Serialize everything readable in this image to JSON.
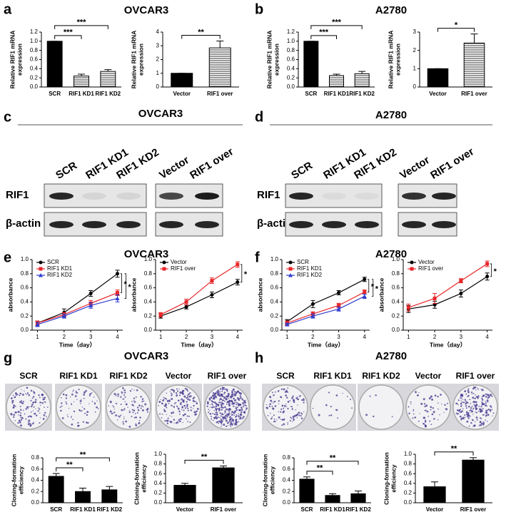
{
  "figure": {
    "panels": [
      {
        "letter": "a",
        "title": "OVCAR3"
      },
      {
        "letter": "b",
        "title": "A2780"
      },
      {
        "letter": "c",
        "title": "OVCAR3"
      },
      {
        "letter": "d",
        "title": "A2780"
      },
      {
        "letter": "e",
        "title": "OVCAR3"
      },
      {
        "letter": "f",
        "title": "A2780"
      },
      {
        "letter": "g",
        "title": "OVCAR3"
      },
      {
        "letter": "h",
        "title": "A2780"
      }
    ],
    "blots": [
      {
        "lanes": [
          "SCR",
          "RIF1 KD1",
          "RIF1 KD2",
          "Vector",
          "RIF1 over"
        ],
        "rows": [
          "RIF1",
          "β-actin"
        ]
      },
      {
        "lanes": [
          "SCR",
          "RIF1 KD1",
          "RIF1 KD2",
          "Vector",
          "RIF1 over"
        ],
        "rows": [
          "RIF1",
          "β-actin"
        ]
      }
    ],
    "dishes": [
      {
        "lanes": [
          "SCR",
          "RIF1 KD1",
          "RIF1 KD2",
          "Vector",
          "RIF1 over"
        ]
      },
      {
        "lanes": [
          "SCR",
          "RIF1 KD1",
          "RIF1 KD2",
          "Vector",
          "RIF1 over"
        ]
      }
    ]
  },
  "chart_data": [
    {
      "type": "bar",
      "ylabel": [
        "Relative RIF1 mRNA",
        "expression"
      ],
      "categories": [
        "SCR",
        "RIF1 KD1",
        "RIF1 KD2"
      ],
      "values": [
        1.0,
        0.24,
        0.34
      ],
      "errors": [
        0,
        0.04,
        0.04
      ],
      "colors": [
        "#000000",
        "hatch",
        "hatch"
      ],
      "ylim": [
        0,
        1.2
      ],
      "yticks": [
        {
          "value": 0,
          "label": "0.0"
        },
        0.2,
        0.4,
        0.6,
        0.8,
        {
          "value": 1,
          "label": "1.0"
        },
        1.2
      ],
      "annotations": [
        {
          "text": "***",
          "between": [
            "SCR",
            "RIF1 KD1"
          ]
        },
        {
          "text": "***",
          "between": [
            "SCR",
            "RIF1 KD2"
          ]
        }
      ]
    },
    {
      "type": "bar",
      "ylabel": [
        "Relative RIF1 mRNA",
        "expression"
      ],
      "categories": [
        "Vector",
        "RIF1 over"
      ],
      "values": [
        1.0,
        2.85
      ],
      "errors": [
        0,
        0.5
      ],
      "colors": [
        "#000000",
        "hatch"
      ],
      "ylim": [
        0,
        4
      ],
      "yticks": [
        0,
        1,
        2,
        3,
        4
      ],
      "annotations": [
        {
          "text": "**",
          "between": [
            "Vector",
            "RIF1 over"
          ]
        }
      ]
    },
    {
      "type": "bar",
      "ylabel": [
        "Relative RIF1 mRNA",
        "expression"
      ],
      "categories": [
        "SCR",
        "RIF1 KD1",
        "RIF1 KD2"
      ],
      "values": [
        1.0,
        0.25,
        0.29
      ],
      "errors": [
        0,
        0.03,
        0.05
      ],
      "colors": [
        "#000000",
        "hatch",
        "hatch"
      ],
      "ylim": [
        0,
        1.2
      ],
      "yticks": [
        {
          "value": 0,
          "label": "0.0"
        },
        0.2,
        0.4,
        0.6,
        0.8,
        {
          "value": 1,
          "label": "1.0"
        },
        1.2
      ],
      "annotations": [
        {
          "text": "***",
          "between": [
            "SCR",
            "RIF1 KD1"
          ]
        },
        {
          "text": "***",
          "between": [
            "SCR",
            "RIF1 KD2"
          ]
        }
      ]
    },
    {
      "type": "bar",
      "ylabel": [
        "Relative RIF1 mRNA",
        "expression"
      ],
      "categories": [
        "Vector",
        "RIF1 over"
      ],
      "values": [
        1.0,
        2.4
      ],
      "errors": [
        0,
        0.5
      ],
      "colors": [
        "#000000",
        "hatch"
      ],
      "ylim": [
        0,
        3
      ],
      "yticks": [
        0,
        1,
        2,
        3
      ],
      "annotations": [
        {
          "text": "*",
          "between": [
            "Vector",
            "RIF1 over"
          ]
        }
      ]
    },
    {
      "type": "line",
      "xlabel": "Time（day）",
      "ylabel": [
        "absorbance"
      ],
      "x": [
        1,
        2,
        3,
        4
      ],
      "xlim": [
        0.8,
        4.2
      ],
      "xticks": [
        1,
        2,
        3,
        4
      ],
      "ylim": [
        0,
        1
      ],
      "yticks": [
        {
          "value": 0,
          "label": "0.0"
        },
        0.2,
        0.4,
        0.6,
        0.8,
        {
          "value": 1,
          "label": "1.0"
        }
      ],
      "series": [
        {
          "name": "SCR",
          "color": "#000000",
          "marker": "circle",
          "values": [
            0.1,
            0.25,
            0.52,
            0.8
          ],
          "errors": [
            0.03,
            0.05,
            0.04,
            0.05
          ]
        },
        {
          "name": "RIF1 KD1",
          "color": "#e8262a",
          "marker": "square",
          "values": [
            0.1,
            0.22,
            0.38,
            0.53
          ],
          "errors": [
            0.03,
            0.03,
            0.04,
            0.04
          ]
        },
        {
          "name": "RIF1 KD2",
          "color": "#2f3ecf",
          "marker": "triangle",
          "values": [
            0.08,
            0.2,
            0.35,
            0.45
          ],
          "errors": [
            0.03,
            0.03,
            0.04,
            0.05
          ]
        }
      ],
      "annotations": [
        {
          "text": "*",
          "between": [
            "SCR",
            "RIF1 KD1"
          ]
        },
        {
          "text": "*",
          "between": [
            "SCR",
            "RIF1 KD2"
          ]
        }
      ]
    },
    {
      "type": "line",
      "xlabel": "Time（day）",
      "ylabel": [
        "absorbance"
      ],
      "x": [
        1,
        2,
        3,
        4
      ],
      "xlim": [
        0.8,
        4.2
      ],
      "xticks": [
        1,
        2,
        3,
        4
      ],
      "ylim": [
        0,
        1
      ],
      "yticks": [
        {
          "value": 0,
          "label": "0.0"
        },
        0.2,
        0.4,
        0.6,
        0.8,
        {
          "value": 1,
          "label": "1.0"
        }
      ],
      "series": [
        {
          "name": "Vector",
          "color": "#000000",
          "marker": "circle",
          "values": [
            0.2,
            0.33,
            0.5,
            0.68
          ],
          "errors": [
            0.03,
            0.03,
            0.04,
            0.04
          ]
        },
        {
          "name": "RIF1 over",
          "color": "#e8262a",
          "marker": "square",
          "values": [
            0.22,
            0.4,
            0.7,
            0.93
          ],
          "errors": [
            0.03,
            0.04,
            0.04,
            0.04
          ]
        }
      ],
      "annotations": [
        {
          "text": "*",
          "between": [
            "Vector",
            "RIF1 over"
          ]
        }
      ]
    },
    {
      "type": "line",
      "xlabel": "Time（day）",
      "ylabel": [
        "absorbance"
      ],
      "x": [
        1,
        2,
        3,
        4
      ],
      "xlim": [
        0.8,
        4.2
      ],
      "xticks": [
        1,
        2,
        3,
        4
      ],
      "ylim": [
        0,
        1
      ],
      "yticks": [
        {
          "value": 0,
          "label": "0.0"
        },
        0.2,
        0.4,
        0.6,
        0.8,
        {
          "value": 1,
          "label": "1.0"
        }
      ],
      "series": [
        {
          "name": "SCR",
          "color": "#000000",
          "marker": "circle",
          "values": [
            0.12,
            0.37,
            0.53,
            0.72
          ],
          "errors": [
            0.03,
            0.05,
            0.03,
            0.03
          ]
        },
        {
          "name": "RIF1 KD1",
          "color": "#e8262a",
          "marker": "square",
          "values": [
            0.1,
            0.23,
            0.35,
            0.54
          ],
          "errors": [
            0.03,
            0.03,
            0.03,
            0.03
          ]
        },
        {
          "name": "RIF1 KD2",
          "color": "#2f3ecf",
          "marker": "triangle",
          "values": [
            0.08,
            0.2,
            0.3,
            0.48
          ],
          "errors": [
            0.02,
            0.03,
            0.03,
            0.03
          ]
        }
      ],
      "annotations": [
        {
          "text": "*",
          "between": [
            "SCR",
            "RIF1 KD1"
          ]
        },
        {
          "text": "*",
          "between": [
            "SCR",
            "RIF1 KD2"
          ]
        }
      ]
    },
    {
      "type": "line",
      "xlabel": "Time（day）",
      "ylabel": [
        "absorbance"
      ],
      "x": [
        1,
        2,
        3,
        4
      ],
      "xlim": [
        0.8,
        4.2
      ],
      "xticks": [
        1,
        2,
        3,
        4
      ],
      "ylim": [
        0,
        1
      ],
      "yticks": [
        {
          "value": 0,
          "label": "0.0"
        },
        0.2,
        0.4,
        0.6,
        0.8,
        {
          "value": 1,
          "label": "1.0"
        }
      ],
      "series": [
        {
          "name": "Vector",
          "color": "#000000",
          "marker": "circle",
          "values": [
            0.3,
            0.36,
            0.52,
            0.76
          ],
          "errors": [
            0.05,
            0.05,
            0.05,
            0.05
          ]
        },
        {
          "name": "RIF1 over",
          "color": "#e8262a",
          "marker": "square",
          "values": [
            0.32,
            0.45,
            0.7,
            0.94
          ],
          "errors": [
            0.05,
            0.07,
            0.03,
            0.04
          ]
        }
      ],
      "annotations": [
        {
          "text": "*",
          "between": [
            "Vector",
            "RIF1 over"
          ]
        }
      ]
    },
    {
      "type": "bar",
      "ylabel": [
        "Cloning-formation",
        "efficiency"
      ],
      "categories": [
        "SCR",
        "RIF1 KD1",
        "RIF1 KD2"
      ],
      "values": [
        0.47,
        0.2,
        0.23
      ],
      "errors": [
        0.05,
        0.06,
        0.06
      ],
      "colors": [
        "#000000",
        "#000000",
        "#000000"
      ],
      "ylim": [
        0,
        0.8
      ],
      "yticks": [
        {
          "value": 0,
          "label": "0.0"
        },
        0.2,
        0.4,
        0.6,
        0.8
      ],
      "annotations": [
        {
          "text": "**",
          "between": [
            "SCR",
            "RIF1 KD1"
          ]
        },
        {
          "text": "**",
          "between": [
            "SCR",
            "RIF1 KD2"
          ]
        }
      ]
    },
    {
      "type": "bar",
      "ylabel": [
        "Cloning-formation",
        "efficiency"
      ],
      "categories": [
        "Vector",
        "RIF1 over"
      ],
      "values": [
        0.36,
        0.72
      ],
      "errors": [
        0.04,
        0.04
      ],
      "colors": [
        "#000000",
        "#000000"
      ],
      "ylim": [
        0,
        1
      ],
      "yticks": [
        {
          "value": 0,
          "label": "0.0"
        },
        0.2,
        0.4,
        0.6,
        0.8,
        {
          "value": 1,
          "label": "1.0"
        }
      ],
      "annotations": [
        {
          "text": "**",
          "between": [
            "Vector",
            "RIF1 over"
          ]
        }
      ]
    },
    {
      "type": "bar",
      "ylabel": [
        "Cloning-formation",
        "efficiency"
      ],
      "categories": [
        "SCR",
        "RIF1 KD1",
        "RIF1 KD2"
      ],
      "values": [
        0.42,
        0.13,
        0.16
      ],
      "errors": [
        0.04,
        0.03,
        0.05
      ],
      "colors": [
        "#000000",
        "#000000",
        "#000000"
      ],
      "ylim": [
        0,
        0.8
      ],
      "yticks": [
        {
          "value": 0,
          "label": "0.0"
        },
        0.2,
        0.4,
        0.6,
        0.8
      ],
      "annotations": [
        {
          "text": "**",
          "between": [
            "SCR",
            "RIF1 KD1"
          ]
        },
        {
          "text": "**",
          "between": [
            "SCR",
            "RIF1 KD2"
          ]
        }
      ]
    },
    {
      "type": "bar",
      "ylabel": [
        "Cloning-formation",
        "efficiency"
      ],
      "categories": [
        "Vector",
        "RIF1 over"
      ],
      "values": [
        0.33,
        0.88
      ],
      "errors": [
        0.1,
        0.05
      ],
      "colors": [
        "#000000",
        "#000000"
      ],
      "ylim": [
        0,
        1
      ],
      "yticks": [
        {
          "value": 0,
          "label": "0.0"
        },
        0.2,
        0.4,
        0.6,
        0.8,
        {
          "value": 1,
          "label": "1.0"
        }
      ],
      "annotations": [
        {
          "text": "**",
          "between": [
            "Vector",
            "RIF1 over"
          ]
        }
      ]
    }
  ]
}
